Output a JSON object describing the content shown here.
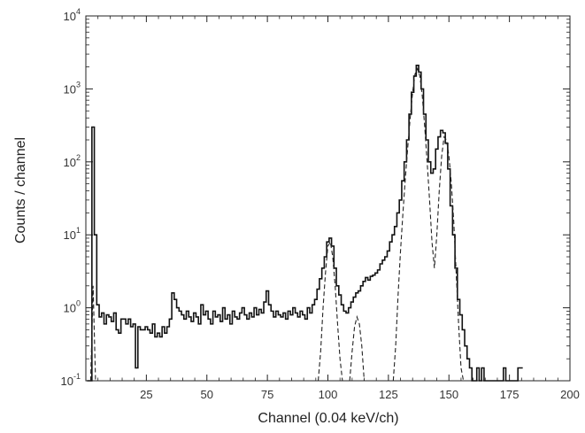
{
  "chart_data": {
    "type": "line",
    "title": "",
    "xlabel": "Channel (0.04 keV/ch)",
    "ylabel": "Counts / channel",
    "xlim": [
      0,
      200
    ],
    "ylim": [
      0.1,
      10000
    ],
    "yscale": "log",
    "grid": false,
    "legend": "none",
    "x_ticks": [
      25,
      50,
      75,
      100,
      125,
      150,
      175,
      200
    ],
    "x_tick_labels": [
      "25",
      "50",
      "75",
      "100",
      "125",
      "150",
      "175",
      "200"
    ],
    "y_ticks": [
      0.1,
      1,
      10,
      100,
      1000,
      10000
    ],
    "y_tick_labels": [
      {
        "base": "10",
        "exp": "-1"
      },
      {
        "base": "10",
        "exp": "0"
      },
      {
        "base": "10",
        "exp": "1"
      },
      {
        "base": "10",
        "exp": "2"
      },
      {
        "base": "10",
        "exp": "3"
      },
      {
        "base": "10",
        "exp": "4"
      }
    ],
    "series": [
      {
        "style": "solid-step",
        "color": "#111111",
        "points": [
          [
            1,
            0.1
          ],
          [
            2,
            0.1
          ],
          [
            3,
            300
          ],
          [
            4,
            10
          ],
          [
            5,
            1.1
          ],
          [
            6,
            0.75
          ],
          [
            7,
            0.85
          ],
          [
            8,
            0.6
          ],
          [
            9,
            0.8
          ],
          [
            10,
            0.75
          ],
          [
            11,
            0.65
          ],
          [
            12,
            0.85
          ],
          [
            13,
            0.5
          ],
          [
            14,
            0.45
          ],
          [
            15,
            0.7
          ],
          [
            16,
            0.7
          ],
          [
            17,
            0.6
          ],
          [
            18,
            0.7
          ],
          [
            19,
            0.55
          ],
          [
            20,
            0.6
          ],
          [
            21,
            0.15
          ],
          [
            22,
            0.55
          ],
          [
            23,
            0.5
          ],
          [
            24,
            0.5
          ],
          [
            25,
            0.55
          ],
          [
            26,
            0.5
          ],
          [
            27,
            0.45
          ],
          [
            28,
            0.6
          ],
          [
            29,
            0.4
          ],
          [
            30,
            0.45
          ],
          [
            31,
            0.4
          ],
          [
            32,
            0.55
          ],
          [
            33,
            0.45
          ],
          [
            34,
            0.55
          ],
          [
            35,
            0.7
          ],
          [
            36,
            1.6
          ],
          [
            37,
            1.3
          ],
          [
            38,
            1.0
          ],
          [
            39,
            0.9
          ],
          [
            40,
            0.8
          ],
          [
            41,
            0.7
          ],
          [
            42,
            0.9
          ],
          [
            43,
            0.75
          ],
          [
            44,
            0.65
          ],
          [
            45,
            0.85
          ],
          [
            46,
            0.75
          ],
          [
            47,
            0.6
          ],
          [
            48,
            1.1
          ],
          [
            49,
            0.8
          ],
          [
            50,
            0.9
          ],
          [
            51,
            0.7
          ],
          [
            52,
            0.6
          ],
          [
            53,
            0.9
          ],
          [
            54,
            0.75
          ],
          [
            55,
            0.8
          ],
          [
            56,
            0.65
          ],
          [
            57,
            1.0
          ],
          [
            58,
            0.7
          ],
          [
            59,
            0.8
          ],
          [
            60,
            0.6
          ],
          [
            61,
            0.9
          ],
          [
            62,
            0.75
          ],
          [
            63,
            0.7
          ],
          [
            64,
            0.85
          ],
          [
            65,
            1.0
          ],
          [
            66,
            0.8
          ],
          [
            67,
            0.7
          ],
          [
            68,
            0.85
          ],
          [
            69,
            0.75
          ],
          [
            70,
            1.0
          ],
          [
            71,
            0.8
          ],
          [
            72,
            0.95
          ],
          [
            73,
            0.85
          ],
          [
            74,
            1.2
          ],
          [
            75,
            1.7
          ],
          [
            76,
            1.1
          ],
          [
            77,
            0.9
          ],
          [
            78,
            0.75
          ],
          [
            79,
            0.9
          ],
          [
            80,
            0.8
          ],
          [
            81,
            0.75
          ],
          [
            82,
            0.85
          ],
          [
            83,
            0.7
          ],
          [
            84,
            0.9
          ],
          [
            85,
            0.8
          ],
          [
            86,
            1.0
          ],
          [
            87,
            0.85
          ],
          [
            88,
            0.75
          ],
          [
            89,
            0.9
          ],
          [
            90,
            0.8
          ],
          [
            91,
            0.7
          ],
          [
            92,
            1.0
          ],
          [
            93,
            0.85
          ],
          [
            94,
            1.1
          ],
          [
            95,
            1.3
          ],
          [
            96,
            1.8
          ],
          [
            97,
            2.5
          ],
          [
            98,
            3.5
          ],
          [
            99,
            5
          ],
          [
            100,
            8
          ],
          [
            101,
            9
          ],
          [
            102,
            7
          ],
          [
            103,
            3.5
          ],
          [
            104,
            2.0
          ],
          [
            105,
            1.5
          ],
          [
            106,
            1.1
          ],
          [
            107,
            0.9
          ],
          [
            108,
            0.85
          ],
          [
            109,
            1.0
          ],
          [
            110,
            1.2
          ],
          [
            111,
            1.4
          ],
          [
            112,
            1.6
          ],
          [
            113,
            1.7
          ],
          [
            114,
            2.0
          ],
          [
            115,
            2.3
          ],
          [
            116,
            2.6
          ],
          [
            117,
            2.4
          ],
          [
            118,
            2.7
          ],
          [
            119,
            2.8
          ],
          [
            120,
            3.0
          ],
          [
            121,
            3.3
          ],
          [
            122,
            4.0
          ],
          [
            123,
            4.5
          ],
          [
            124,
            5.0
          ],
          [
            125,
            6.0
          ],
          [
            126,
            8.0
          ],
          [
            127,
            10
          ],
          [
            128,
            13
          ],
          [
            129,
            20
          ],
          [
            130,
            30
          ],
          [
            131,
            55
          ],
          [
            132,
            100
          ],
          [
            133,
            200
          ],
          [
            134,
            450
          ],
          [
            135,
            900
          ],
          [
            136,
            1500
          ],
          [
            137,
            2100
          ],
          [
            138,
            1700
          ],
          [
            139,
            1000
          ],
          [
            140,
            450
          ],
          [
            141,
            200
          ],
          [
            142,
            100
          ],
          [
            143,
            70
          ],
          [
            144,
            80
          ],
          [
            145,
            150
          ],
          [
            146,
            220
          ],
          [
            147,
            270
          ],
          [
            148,
            250
          ],
          [
            149,
            180
          ],
          [
            150,
            80
          ],
          [
            151,
            25
          ],
          [
            152,
            10
          ],
          [
            153,
            3.5
          ],
          [
            154,
            1.3
          ],
          [
            155,
            0.8
          ],
          [
            156,
            0.5
          ],
          [
            157,
            0.3
          ],
          [
            158,
            0.2
          ],
          [
            159,
            0.15
          ],
          [
            160,
            0.1
          ],
          [
            161,
            0.1
          ],
          [
            162,
            0.15
          ],
          [
            163,
            0.1
          ],
          [
            164,
            0.15
          ],
          [
            165,
            0.1
          ],
          [
            166,
            0.1
          ],
          [
            167,
            0.1
          ],
          [
            168,
            0.1
          ],
          [
            169,
            0.1
          ],
          [
            170,
            0.1
          ],
          [
            171,
            0.1
          ],
          [
            172,
            0.1
          ],
          [
            173,
            0.15
          ],
          [
            174,
            0.1
          ],
          [
            175,
            0.1
          ],
          [
            176,
            0.1
          ],
          [
            177,
            0.1
          ],
          [
            178,
            0.1
          ],
          [
            179,
            0.15
          ],
          [
            180,
            0.15
          ]
        ]
      },
      {
        "style": "dashed",
        "color": "#222222",
        "points": [
          [
            2,
            0.1
          ],
          [
            3,
            2
          ],
          [
            4,
            0.1
          ],
          [
            96,
            0.1
          ],
          [
            97,
            0.25
          ],
          [
            98,
            1.0
          ],
          [
            99,
            3
          ],
          [
            100,
            7
          ],
          [
            101,
            8
          ],
          [
            102,
            5
          ],
          [
            103,
            2
          ],
          [
            104,
            0.6
          ],
          [
            105,
            0.2
          ],
          [
            106,
            0.1
          ],
          [
            109,
            0.1
          ],
          [
            110,
            0.25
          ],
          [
            111,
            0.55
          ],
          [
            112,
            0.75
          ],
          [
            113,
            0.6
          ],
          [
            114,
            0.3
          ],
          [
            115,
            0.1
          ],
          [
            127,
            0.1
          ],
          [
            128,
            0.3
          ],
          [
            129,
            1.5
          ],
          [
            130,
            6
          ],
          [
            131,
            20
          ],
          [
            132,
            60
          ],
          [
            133,
            160
          ],
          [
            134,
            400
          ],
          [
            135,
            900
          ],
          [
            136,
            1600
          ],
          [
            137,
            1900
          ],
          [
            138,
            1500
          ],
          [
            139,
            800
          ],
          [
            140,
            300
          ],
          [
            141,
            100
          ],
          [
            142,
            30
          ],
          [
            143,
            8
          ],
          [
            144,
            3.5
          ],
          [
            145,
            10
          ],
          [
            146,
            40
          ],
          [
            147,
            120
          ],
          [
            148,
            220
          ],
          [
            149,
            200
          ],
          [
            150,
            120
          ],
          [
            151,
            50
          ],
          [
            152,
            15
          ],
          [
            153,
            3
          ],
          [
            154,
            0.6
          ],
          [
            155,
            0.15
          ],
          [
            156,
            0.1
          ]
        ]
      }
    ]
  }
}
